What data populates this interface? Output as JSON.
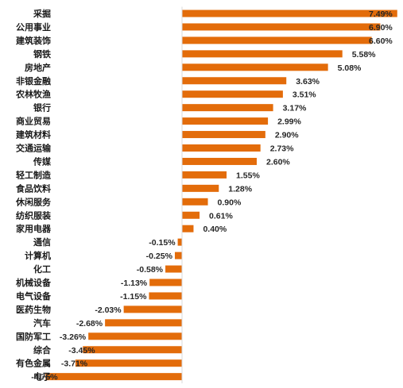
{
  "chart_data": {
    "type": "bar",
    "orientation": "horizontal",
    "categories": [
      "采掘",
      "公用事业",
      "建筑装饰",
      "钢铁",
      "房地产",
      "非银金融",
      "农林牧渔",
      "银行",
      "商业贸易",
      "建筑材料",
      "交通运输",
      "传媒",
      "轻工制造",
      "食品饮料",
      "休闲服务",
      "纺织服装",
      "家用电器",
      "通信",
      "计算机",
      "化工",
      "机械设备",
      "电气设备",
      "医药生物",
      "汽车",
      "国防军工",
      "综合",
      "有色金属",
      "电子"
    ],
    "values": [
      7.49,
      6.9,
      6.6,
      5.58,
      5.08,
      3.63,
      3.51,
      3.17,
      2.99,
      2.9,
      2.73,
      2.6,
      1.55,
      1.28,
      0.9,
      0.61,
      0.4,
      -0.15,
      -0.25,
      -0.58,
      -1.13,
      -1.15,
      -2.03,
      -2.68,
      -3.26,
      -3.45,
      -3.71,
      -4.75
    ],
    "value_labels": [
      "7.49%",
      "6.90%",
      "6.60%",
      "5.58%",
      "5.08%",
      "3.63%",
      "3.51%",
      "3.17%",
      "2.99%",
      "2.90%",
      "2.73%",
      "2.60%",
      "1.55%",
      "1.28%",
      "0.90%",
      "0.61%",
      "0.40%",
      "-0.15%",
      "-0.25%",
      "-0.58%",
      "-1.13%",
      "-1.15%",
      "-2.03%",
      "-2.68%",
      "-3.26%",
      "-3.45%",
      "-3.71%",
      "-4.75%"
    ],
    "unit": "%",
    "bar_color": "#E36C0A",
    "grid": false,
    "legend": "none"
  }
}
